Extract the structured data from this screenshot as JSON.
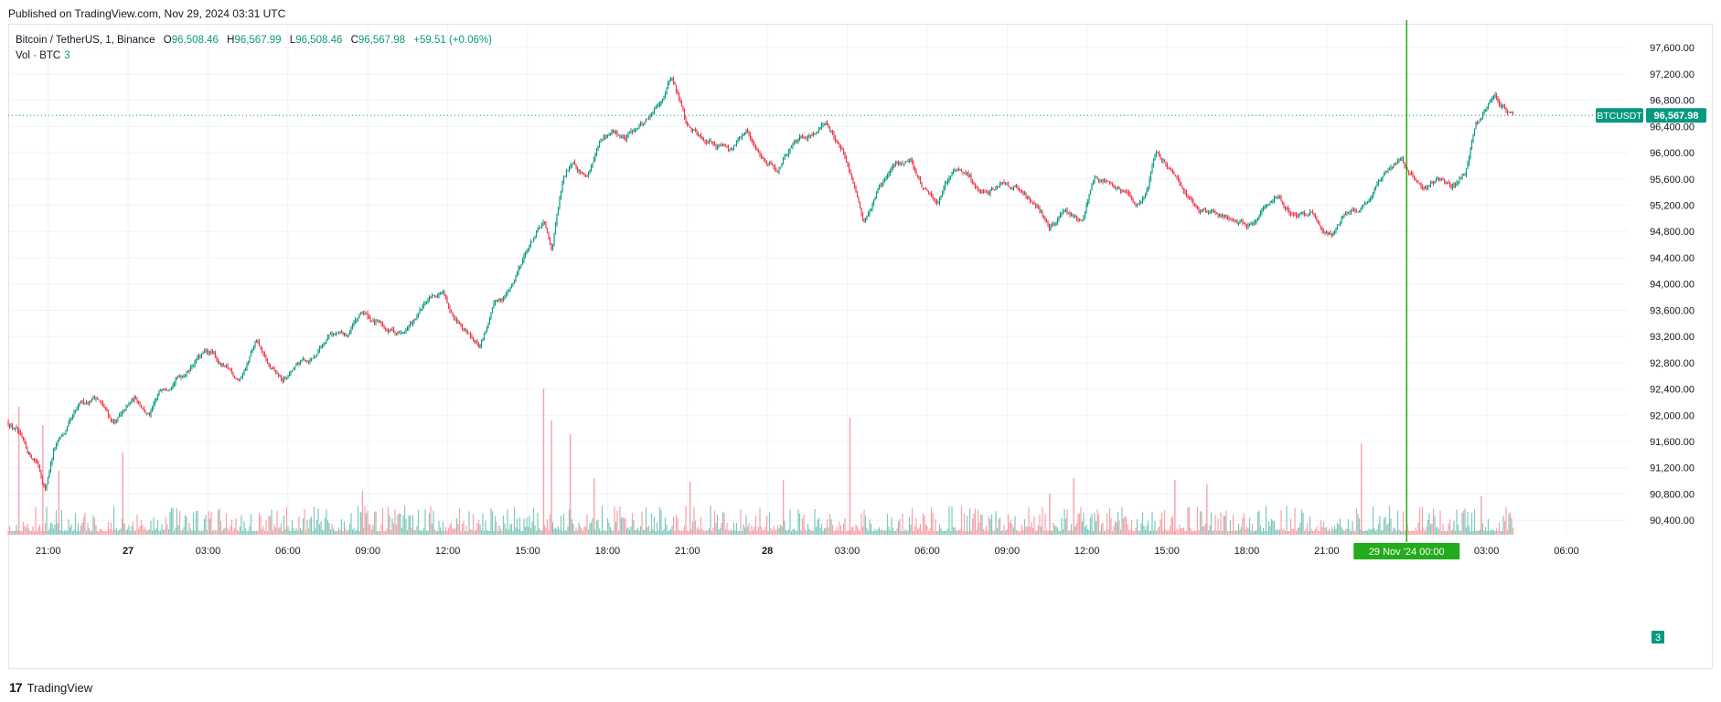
{
  "header": {
    "published": "Published on TradingView.com, Nov 29, 2024 03:31 UTC"
  },
  "legend": {
    "symbol": "Bitcoin / TetherUS, 1, Binance",
    "open_label": "O",
    "open": "96,508.46",
    "high_label": "H",
    "high": "96,567.99",
    "low_label": "L",
    "low": "96,508.46",
    "close_label": "C",
    "close": "96,567.98",
    "change": "+59.51 (+0.06%)",
    "volume_label": "Vol · BTC",
    "volume_value": "3"
  },
  "footer": {
    "brand": "TradingView",
    "brand_mark": "17"
  },
  "colors": {
    "up": "#089981",
    "down": "#f23645",
    "up_vol": "#7fc8bb",
    "down_vol": "#f7a1a8",
    "grid": "#f0f3fa",
    "price_line": "#089981",
    "cursor": "#22ab1a"
  },
  "chart_data": {
    "type": "candlestick",
    "symbol": "BTCUSDT",
    "interval": "1",
    "exchange": "Binance",
    "last_price": 96567.98,
    "last_price_label": "96,567.98",
    "price_tag_label": "BTCUSDT",
    "volume_tag": "3",
    "y_axis": {
      "ticks": [
        97600,
        97200,
        96800,
        96400,
        96000,
        95600,
        95200,
        94800,
        94400,
        94000,
        93600,
        93200,
        92800,
        92400,
        92000,
        91600,
        91200,
        90800,
        90400
      ],
      "tick_labels": [
        "97,600.00",
        "97,200.00",
        "96,800.00",
        "96,400.00",
        "96,000.00",
        "95,600.00",
        "95,200.00",
        "94,800.00",
        "94,400.00",
        "94,000.00",
        "93,600.00",
        "93,200.00",
        "92,800.00",
        "92,400.00",
        "92,000.00",
        "91,600.00",
        "91,200.00",
        "90,800.00",
        "90,400.00"
      ],
      "range": [
        90180,
        97950
      ]
    },
    "x_axis": {
      "ticks": [
        "21:00",
        "27",
        "03:00",
        "06:00",
        "09:00",
        "12:00",
        "15:00",
        "18:00",
        "21:00",
        "28",
        "03:00",
        "06:00",
        "09:00",
        "12:00",
        "15:00",
        "18:00",
        "21:00",
        "00:00",
        "03:00",
        "06:00"
      ],
      "tick_hours": [
        -3,
        0,
        3,
        6,
        9,
        12,
        15,
        18,
        21,
        24,
        27,
        30,
        33,
        36,
        39,
        42,
        45,
        48,
        51,
        54
      ],
      "bold_ticks": [
        "27",
        "28"
      ],
      "range_hours": [
        -4.5,
        56.3
      ],
      "crosshair_hour": 48,
      "crosshair_label": "29 Nov '24   00:00"
    },
    "price_path": {
      "hours": [
        -4.5,
        -4.2,
        -3.8,
        -3.4,
        -3.1,
        -2.8,
        -2.4,
        -1.8,
        -1.2,
        -0.6,
        -0.2,
        0.3,
        0.8,
        1.3,
        1.8,
        2.2,
        2.6,
        3.1,
        3.6,
        4.2,
        4.8,
        5.3,
        5.8,
        6.4,
        7.0,
        7.6,
        8.2,
        8.8,
        9.3,
        9.8,
        10.3,
        10.8,
        11.3,
        11.8,
        12.1,
        12.6,
        13.2,
        13.8,
        14.4,
        14.9,
        15.3,
        15.6,
        15.9,
        16.3,
        16.7,
        17.2,
        17.7,
        18.2,
        18.7,
        19.2,
        19.7,
        20.1,
        20.4,
        20.7,
        21.0,
        21.4,
        22.0,
        22.6,
        23.2,
        23.8,
        24.4,
        25.0,
        25.6,
        26.2,
        26.8,
        27.3,
        27.6,
        28.2,
        28.8,
        29.4,
        29.8,
        30.4,
        31.0,
        31.6,
        32.2,
        32.8,
        33.4,
        33.8,
        34.2,
        34.6,
        35.0,
        35.4,
        35.8,
        36.3,
        36.8,
        37.3,
        37.8,
        38.2,
        38.6,
        39.0,
        39.6,
        40.2,
        40.8,
        41.4,
        42.0,
        42.6,
        43.2,
        43.8,
        44.4,
        44.8,
        45.2,
        45.6,
        46.2,
        46.8,
        47.4,
        47.8,
        48.2,
        48.6,
        49.2,
        49.8,
        50.2,
        50.6,
        50.9,
        51.3,
        51.7,
        52.0
      ],
      "prices": [
        91900,
        91800,
        91400,
        91300,
        90900,
        91500,
        91700,
        92100,
        92300,
        91900,
        92000,
        92250,
        92000,
        92400,
        92600,
        92700,
        92900,
        92950,
        92700,
        92550,
        93100,
        92700,
        92500,
        92750,
        92900,
        93300,
        93200,
        93550,
        93400,
        93300,
        93250,
        93450,
        93750,
        93900,
        93500,
        93400,
        93100,
        93700,
        93950,
        94500,
        94750,
        94900,
        94500,
        95500,
        95900,
        95650,
        96100,
        96300,
        96200,
        96450,
        96600,
        96900,
        97200,
        96800,
        96400,
        96300,
        96200,
        96100,
        96300,
        95950,
        95800,
        96100,
        96300,
        96450,
        96100,
        95400,
        94900,
        95500,
        95800,
        95900,
        95500,
        95200,
        95750,
        95600,
        95300,
        95600,
        95500,
        95300,
        95200,
        94850,
        95100,
        95050,
        94900,
        95700,
        95600,
        95400,
        95200,
        95400,
        96000,
        95800,
        95400,
        95200,
        95100,
        95000,
        94850,
        95100,
        95300,
        95050,
        95100,
        94900,
        94800,
        95000,
        95150,
        95450,
        95700,
        95950,
        95650,
        95500,
        95600,
        95500,
        95700,
        96400,
        96600,
        96850,
        96700,
        96568
      ]
    },
    "volume_spikes": [
      {
        "hour": -4.1,
        "value": 140
      },
      {
        "hour": -3.2,
        "value": 120
      },
      {
        "hour": -2.6,
        "value": 70
      },
      {
        "hour": -0.2,
        "value": 90
      },
      {
        "hour": 8.8,
        "value": 48
      },
      {
        "hour": 15.6,
        "value": 160
      },
      {
        "hour": 15.9,
        "value": 125
      },
      {
        "hour": 16.6,
        "value": 110
      },
      {
        "hour": 17.5,
        "value": 62
      },
      {
        "hour": 21.1,
        "value": 58
      },
      {
        "hour": 24.6,
        "value": 60
      },
      {
        "hour": 27.1,
        "value": 128
      },
      {
        "hour": 34.6,
        "value": 45
      },
      {
        "hour": 35.5,
        "value": 62
      },
      {
        "hour": 39.3,
        "value": 60
      },
      {
        "hour": 40.5,
        "value": 55
      },
      {
        "hour": 46.3,
        "value": 100
      },
      {
        "hour": 50.8,
        "value": 42
      }
    ]
  }
}
